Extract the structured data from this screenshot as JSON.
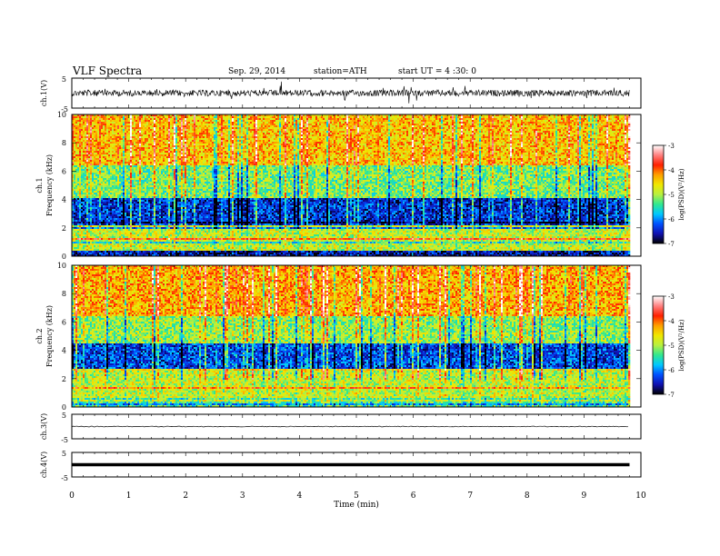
{
  "header": {
    "title": "VLF Spectra",
    "date": "Sep. 29, 2014",
    "station": "station=ATH",
    "start_ut": "start UT =  4 :30: 0"
  },
  "colors": {
    "background": "#ffffff",
    "frame": "#000000",
    "colormap": [
      "#000000",
      "#1010b0",
      "#0050ff",
      "#00c8ff",
      "#30e890",
      "#b8f040",
      "#f0e800",
      "#ffa000",
      "#ff2000",
      "#ff8080",
      "#ffffff"
    ]
  },
  "chart_data": [
    {
      "type": "line",
      "panel": "ch1-waveform",
      "ylabel": "ch.1(V)",
      "yticks": [
        "5",
        "-5"
      ],
      "ylim": [
        -5,
        5
      ],
      "x_range_min": [
        0,
        9.8
      ],
      "description_values": {
        "baseline": 0.0,
        "amplitude_approx": 1.5
      },
      "color": "#000000"
    },
    {
      "type": "heatmap",
      "panel": "ch1-spectrogram",
      "ylabel": "ch.1\nFrequency (kHz)",
      "ylabel_lines": [
        "ch.1",
        "Frequency (kHz)"
      ],
      "yticks": [
        "0",
        "2",
        "4",
        "6",
        "8",
        "10"
      ],
      "ylim": [
        0,
        10
      ],
      "xlim": [
        0,
        9.8
      ],
      "colorbar": {
        "label": "log(PSD)(V²/Hz)",
        "ticks": [
          "-3",
          "-4",
          "-5",
          "-6",
          "-7"
        ],
        "range": [
          -7,
          -3
        ]
      },
      "bands_khz_logpsd": [
        {
          "f": [
            0,
            0.4
          ],
          "value": -6.6
        },
        {
          "f": [
            0.4,
            2.2
          ],
          "value": -4.9
        },
        {
          "f": [
            2.2,
            4.2
          ],
          "value": -6.4
        },
        {
          "f": [
            4.2,
            6.5
          ],
          "value": -5.2
        },
        {
          "f": [
            6.5,
            10
          ],
          "value": -4.4
        }
      ]
    },
    {
      "type": "heatmap",
      "panel": "ch2-spectrogram",
      "ylabel_lines": [
        "ch.2",
        "Frequency (kHz)"
      ],
      "yticks": [
        "0",
        "2",
        "4",
        "6",
        "8",
        "10"
      ],
      "ylim": [
        0,
        10
      ],
      "xlim": [
        0,
        9.8
      ],
      "colorbar": {
        "label": "log(PSD)(V²/Hz)",
        "ticks": [
          "-3",
          "-4",
          "-5",
          "-6",
          "-7"
        ],
        "range": [
          -7,
          -3
        ]
      },
      "bands_khz_logpsd": [
        {
          "f": [
            0,
            0.5
          ],
          "value": -5.4
        },
        {
          "f": [
            0.5,
            2.8
          ],
          "value": -4.9
        },
        {
          "f": [
            2.8,
            4.6
          ],
          "value": -6.3
        },
        {
          "f": [
            4.6,
            6.5
          ],
          "value": -5.1
        },
        {
          "f": [
            6.5,
            10
          ],
          "value": -4.3
        }
      ]
    },
    {
      "type": "line",
      "panel": "ch3-waveform",
      "ylabel": "ch.3(V)",
      "yticks": [
        "5",
        "-5"
      ],
      "ylim": [
        -5,
        5
      ],
      "values_constant": 0,
      "x_range_min": [
        0,
        9.8
      ]
    },
    {
      "type": "line",
      "panel": "ch4-waveform",
      "ylabel": "ch.4(V)",
      "yticks": [
        "5",
        "-5"
      ],
      "ylim": [
        -5,
        5
      ],
      "values_constant": 0,
      "x_range_min": [
        0,
        9.8
      ]
    }
  ],
  "xaxis": {
    "label": "Time (min)",
    "ticks": [
      "0",
      "1",
      "2",
      "3",
      "4",
      "5",
      "6",
      "7",
      "8",
      "9",
      "10"
    ],
    "xlim": [
      0,
      10
    ]
  }
}
